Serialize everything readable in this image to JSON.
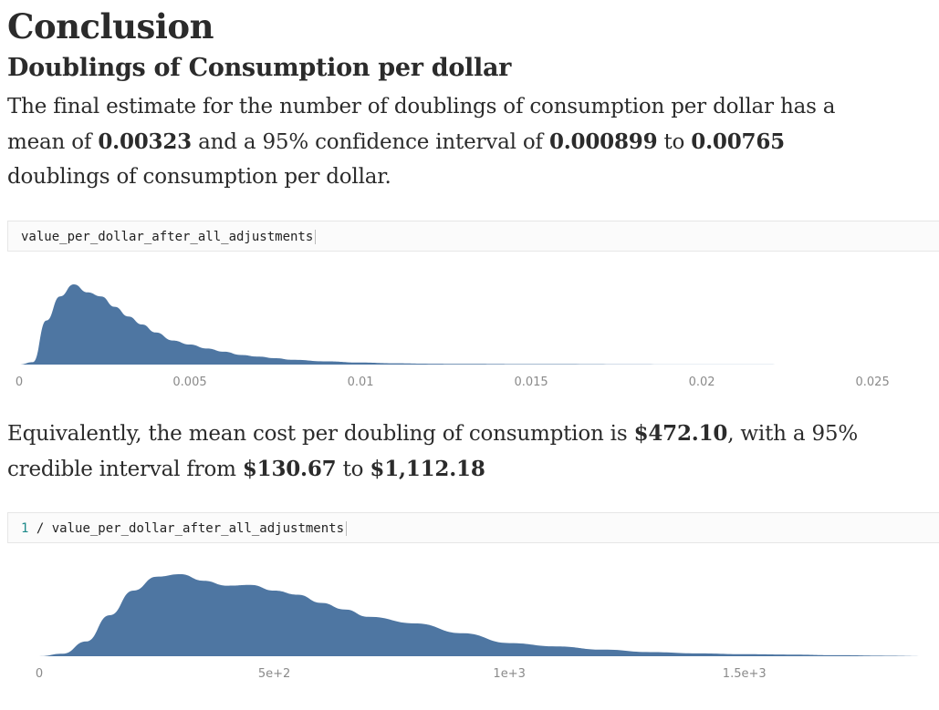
{
  "heading": "Conclusion",
  "subheading": "Doublings of Consumption per dollar",
  "para1": {
    "t1": "The final estimate for the number of doublings of consumption per dollar has a mean of ",
    "mean": "0.00323",
    "t2": " and a 95% confidence interval of ",
    "low": "0.000899",
    "t3": " to ",
    "high": "0.00765",
    "t4": " doublings of consumption per dollar."
  },
  "cell1": {
    "code": "value_per_dollar_after_all_adjustments"
  },
  "para2": {
    "t1": "Equivalently, the mean cost per doubling of consumption is ",
    "mean": "$472.10",
    "t2": ", with a 95% credible interval from ",
    "low": "$130.67",
    "t3": " to ",
    "high": "$1,112.18"
  },
  "cell2": {
    "num": "1",
    "rest": " / value_per_dollar_after_all_adjustments"
  },
  "chart_data": [
    {
      "type": "area",
      "color": "#4e76a2",
      "x": [
        0,
        0.0004,
        0.0008,
        0.0012,
        0.0016,
        0.002,
        0.0024,
        0.0028,
        0.0032,
        0.0036,
        0.004,
        0.0045,
        0.005,
        0.0055,
        0.006,
        0.0065,
        0.007,
        0.0075,
        0.008,
        0.009,
        0.01,
        0.011,
        0.012,
        0.013,
        0.015,
        0.02,
        0.025
      ],
      "y": [
        0,
        0.03,
        0.55,
        0.85,
        1.0,
        0.9,
        0.85,
        0.72,
        0.6,
        0.5,
        0.4,
        0.3,
        0.25,
        0.2,
        0.16,
        0.12,
        0.1,
        0.08,
        0.06,
        0.04,
        0.025,
        0.015,
        0.01,
        0.008,
        0.005,
        0.002,
        0
      ],
      "x_ticks": [
        {
          "value": 0,
          "label": "0"
        },
        {
          "value": 0.005,
          "label": "0.005"
        },
        {
          "value": 0.01,
          "label": "0.01"
        },
        {
          "value": 0.015,
          "label": "0.015"
        },
        {
          "value": 0.02,
          "label": "0.02"
        },
        {
          "value": 0.025,
          "label": "0.025"
        }
      ],
      "xlim": [
        0,
        0.0262
      ]
    },
    {
      "type": "area",
      "color": "#4e76a2",
      "x": [
        0,
        50,
        100,
        150,
        200,
        250,
        300,
        350,
        400,
        450,
        500,
        550,
        600,
        650,
        700,
        800,
        900,
        1000,
        1100,
        1200,
        1300,
        1400,
        1500,
        1600,
        1700,
        1800,
        1900
      ],
      "y": [
        0,
        0.03,
        0.18,
        0.5,
        0.8,
        0.97,
        1.0,
        0.92,
        0.86,
        0.87,
        0.8,
        0.75,
        0.65,
        0.57,
        0.48,
        0.4,
        0.28,
        0.16,
        0.12,
        0.08,
        0.05,
        0.035,
        0.025,
        0.02,
        0.012,
        0.006,
        0
      ],
      "x_ticks": [
        {
          "value": 0,
          "label": "0"
        },
        {
          "value": 500,
          "label": "5e+2"
        },
        {
          "value": 1000,
          "label": "1e+3"
        },
        {
          "value": 1500,
          "label": "1.5e+3"
        }
      ],
      "xlim": [
        0,
        1914
      ]
    }
  ]
}
